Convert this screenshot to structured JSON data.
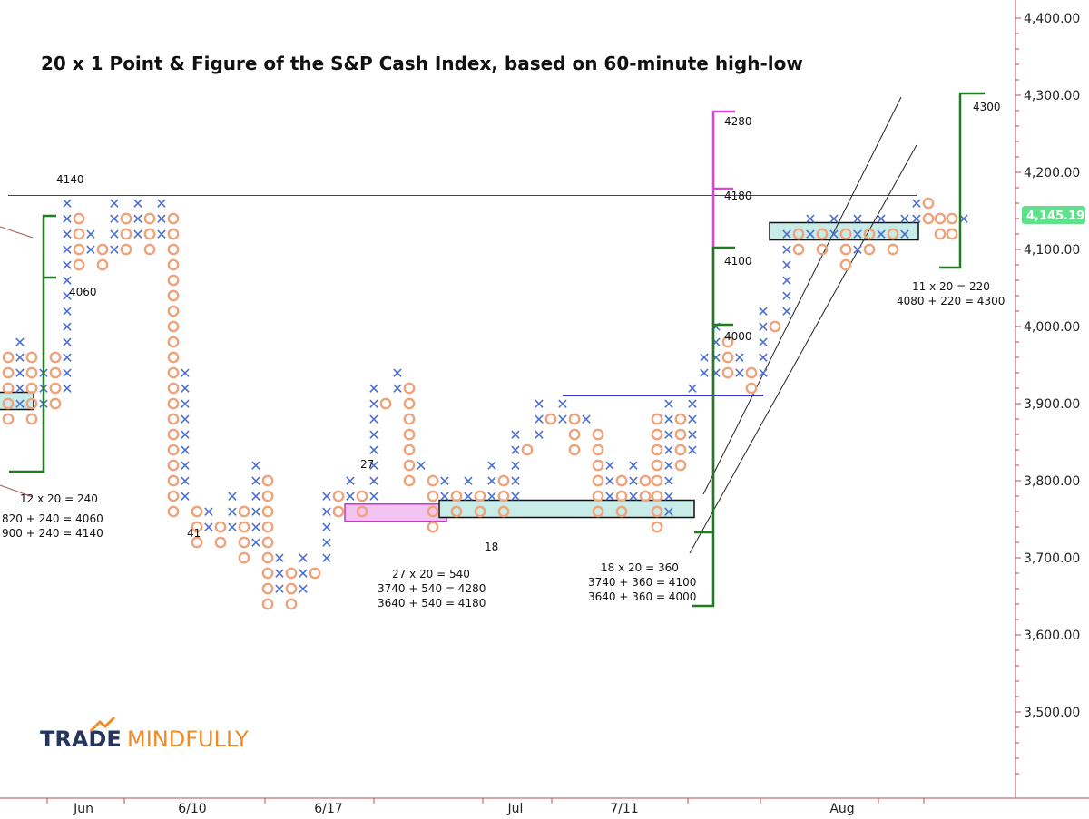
{
  "chart_data": {
    "type": "point-and-figure",
    "title": "20 x 1 Point & Figure of the S&P Cash Index, based on 60-minute high-low",
    "box_size": 20,
    "ylim": [
      3400,
      4450
    ],
    "y_ticks": [
      "4,400.00",
      "4,300.00",
      "4,200.00",
      "4,100.00",
      "4,000.00",
      "3,900.00",
      "3,800.00",
      "3,700.00",
      "3,600.00",
      "3,500.00"
    ],
    "y_tick_values": [
      4400,
      4300,
      4200,
      4100,
      4000,
      3900,
      3800,
      3700,
      3600,
      3500
    ],
    "x_ticks": [
      "Jun",
      "6/10",
      "6/17",
      "Jul",
      "7/11",
      "Aug"
    ],
    "x_tick_columns": [
      4,
      12,
      20,
      30,
      37,
      52
    ],
    "current_price": "4,145.19",
    "current_price_value": 4145.19,
    "colors": {
      "x": "#4a6fd0",
      "o": "#f0a27a",
      "trend": "#3333cc",
      "target_green": "#1e7d1e",
      "target_magenta": "#e040e0",
      "badge": "#5fe08a"
    },
    "columns": [
      {
        "type": "O",
        "low": 3880,
        "high": 3960
      },
      {
        "type": "X",
        "low": 3900,
        "high": 3980
      },
      {
        "type": "O",
        "low": 3880,
        "high": 3960
      },
      {
        "type": "X",
        "low": 3900,
        "high": 3940
      },
      {
        "type": "O",
        "low": 3900,
        "high": 3960
      },
      {
        "type": "X",
        "low": 3920,
        "high": 4160
      },
      {
        "type": "O",
        "low": 4080,
        "high": 4140
      },
      {
        "type": "X",
        "low": 4100,
        "high": 4120
      },
      {
        "type": "O",
        "low": 4080,
        "high": 4100
      },
      {
        "type": "X",
        "low": 4100,
        "high": 4160
      },
      {
        "type": "O",
        "low": 4100,
        "high": 4140
      },
      {
        "type": "X",
        "low": 4120,
        "high": 4160
      },
      {
        "type": "O",
        "low": 4100,
        "high": 4140
      },
      {
        "type": "X",
        "low": 4120,
        "high": 4160
      },
      {
        "type": "O",
        "low": 3760,
        "high": 4140
      },
      {
        "type": "X",
        "low": 3780,
        "high": 3940
      },
      {
        "type": "O",
        "low": 3720,
        "high": 3760
      },
      {
        "type": "X",
        "low": 3740,
        "high": 3760
      },
      {
        "type": "O",
        "low": 3720,
        "high": 3740
      },
      {
        "type": "X",
        "low": 3740,
        "high": 3780
      },
      {
        "type": "O",
        "low": 3700,
        "high": 3760
      },
      {
        "type": "X",
        "low": 3720,
        "high": 3820
      },
      {
        "type": "O",
        "low": 3640,
        "high": 3800
      },
      {
        "type": "X",
        "low": 3660,
        "high": 3700
      },
      {
        "type": "O",
        "low": 3640,
        "high": 3680
      },
      {
        "type": "X",
        "low": 3660,
        "high": 3700
      },
      {
        "type": "O",
        "low": 3680,
        "high": 3680
      },
      {
        "type": "X",
        "low": 3700,
        "high": 3780
      },
      {
        "type": "O",
        "low": 3760,
        "high": 3780
      },
      {
        "type": "X",
        "low": 3780,
        "high": 3800
      },
      {
        "type": "O",
        "low": 3760,
        "high": 3780
      },
      {
        "type": "X",
        "low": 3780,
        "high": 3920
      },
      {
        "type": "O",
        "low": 3900,
        "high": 3900
      },
      {
        "type": "X",
        "low": 3920,
        "high": 3940
      },
      {
        "type": "O",
        "low": 3800,
        "high": 3920
      },
      {
        "type": "X",
        "low": 3820,
        "high": 3820
      },
      {
        "type": "O",
        "low": 3740,
        "high": 3800
      },
      {
        "type": "X",
        "low": 3780,
        "high": 3800
      },
      {
        "type": "O",
        "low": 3760,
        "high": 3780
      },
      {
        "type": "X",
        "low": 3780,
        "high": 3800
      },
      {
        "type": "O",
        "low": 3760,
        "high": 3780
      },
      {
        "type": "X",
        "low": 3780,
        "high": 3820
      },
      {
        "type": "O",
        "low": 3760,
        "high": 3800
      },
      {
        "type": "X",
        "low": 3780,
        "high": 3860
      },
      {
        "type": "O",
        "low": 3840,
        "high": 3840
      },
      {
        "type": "X",
        "low": 3860,
        "high": 3900
      },
      {
        "type": "O",
        "low": 3880,
        "high": 3880
      },
      {
        "type": "X",
        "low": 3880,
        "high": 3900
      },
      {
        "type": "O",
        "low": 3840,
        "high": 3880
      },
      {
        "type": "X",
        "low": 3880,
        "high": 3880
      },
      {
        "type": "O",
        "low": 3760,
        "high": 3860
      },
      {
        "type": "X",
        "low": 3780,
        "high": 3820
      },
      {
        "type": "O",
        "low": 3760,
        "high": 3800
      },
      {
        "type": "X",
        "low": 3780,
        "high": 3820
      },
      {
        "type": "O",
        "low": 3780,
        "high": 3800
      },
      {
        "type": "O",
        "low": 3740,
        "high": 3880
      },
      {
        "type": "X",
        "low": 3760,
        "high": 3900
      },
      {
        "type": "O",
        "low": 3820,
        "high": 3880
      },
      {
        "type": "X",
        "low": 3840,
        "high": 3920
      },
      {
        "type": "X",
        "low": 3940,
        "high": 3960
      },
      {
        "type": "X",
        "low": 3940,
        "high": 4000
      },
      {
        "type": "O",
        "low": 3940,
        "high": 3980
      },
      {
        "type": "X",
        "low": 3940,
        "high": 3960
      },
      {
        "type": "O",
        "low": 3920,
        "high": 3940
      },
      {
        "type": "X",
        "low": 3940,
        "high": 4020
      },
      {
        "type": "O",
        "low": 4000,
        "high": 4000
      },
      {
        "type": "X",
        "low": 4020,
        "high": 4120
      },
      {
        "type": "O",
        "low": 4100,
        "high": 4120
      },
      {
        "type": "X",
        "low": 4120,
        "high": 4140
      },
      {
        "type": "O",
        "low": 4100,
        "high": 4120
      },
      {
        "type": "X",
        "low": 4120,
        "high": 4140
      },
      {
        "type": "O",
        "low": 4080,
        "high": 4120
      },
      {
        "type": "X",
        "low": 4100,
        "high": 4140
      },
      {
        "type": "O",
        "low": 4100,
        "high": 4120
      },
      {
        "type": "X",
        "low": 4120,
        "high": 4140
      },
      {
        "type": "O",
        "low": 4100,
        "high": 4120
      },
      {
        "type": "X",
        "low": 4120,
        "high": 4140
      },
      {
        "type": "X",
        "low": 4140,
        "high": 4160
      },
      {
        "type": "O",
        "low": 4140,
        "high": 4160
      },
      {
        "type": "O",
        "low": 4120,
        "high": 4140
      },
      {
        "type": "O",
        "low": 4120,
        "high": 4140
      },
      {
        "type": "X",
        "low": 4140,
        "high": 4140
      }
    ],
    "horizontal_lines": [
      {
        "value": 4170,
        "from_col": 0,
        "to_col": 77
      },
      {
        "value": 3910,
        "from_col": 47,
        "to_col": 64
      }
    ],
    "count_boxes": [
      {
        "low": 3890,
        "high": 3910,
        "from_col": -1,
        "to_col": 2,
        "color": "cyan"
      },
      {
        "low": 3745,
        "high": 3765,
        "from_col": 29,
        "to_col": 37,
        "color": "magenta"
      },
      {
        "low": 3750,
        "high": 3770,
        "from_col": 37,
        "to_col": 58,
        "color": "cyan"
      },
      {
        "low": 4110,
        "high": 4130,
        "from_col": 65,
        "to_col": 77,
        "color": "cyan"
      }
    ],
    "annotations": {
      "top_left_level": "4140",
      "mid_left_level": "4060",
      "count_left_1": "12 x 20 = 240",
      "count_left_2": "820 + 240 = 4060",
      "count_left_3": "900 + 240 = 4140",
      "col_label_41": "41",
      "col_label_27": "27",
      "count_mid_1": "27 x 20 = 540",
      "count_mid_2": "3740 + 540 = 4280",
      "count_mid_3": "3640 + 540 = 4180",
      "col_label_18": "18",
      "count_right_1": "18 x 20 = 360",
      "count_right_2": "3740 + 360 = 4100",
      "count_right_3": "3640 + 360 = 4000",
      "target_4280": "4280",
      "target_4180": "4180",
      "target_4100": "4100",
      "target_4000": "4000",
      "target_4300": "4300",
      "count_far_1": "11 x 20 = 220",
      "count_far_2": "4080 + 220 = 4300"
    }
  },
  "logo": {
    "part1": "TRADE",
    "part2": "MINDFULLY"
  }
}
